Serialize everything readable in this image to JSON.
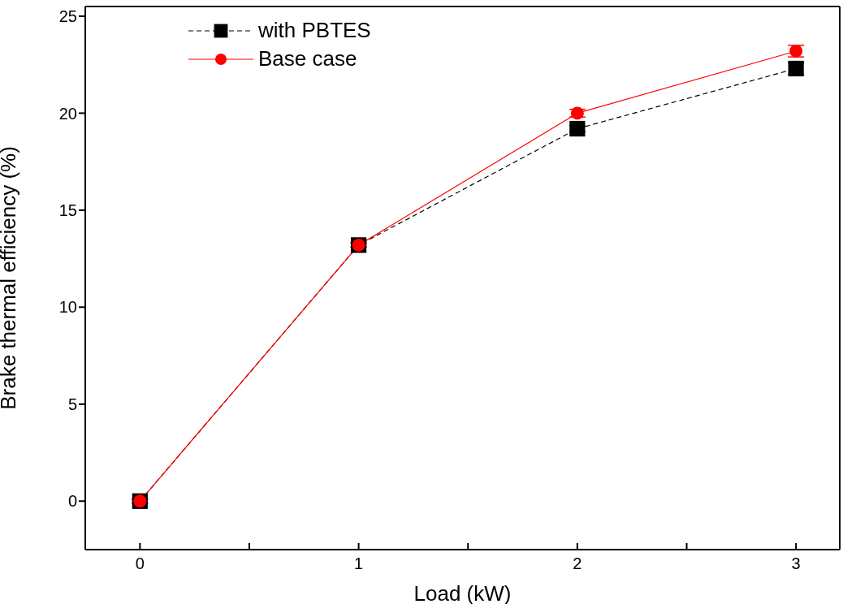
{
  "chart_data": {
    "type": "line",
    "xlabel": "Load (kW)",
    "ylabel": "Brake thermal efficiency (%)",
    "x": [
      0,
      1,
      2,
      3
    ],
    "xlim": [
      -0.25,
      3.2
    ],
    "xticks": [
      0,
      {
        "value": 0.5,
        "label": null
      },
      1,
      {
        "value": 1.5,
        "label": null
      },
      2,
      {
        "value": 2.5,
        "label": null
      },
      3
    ],
    "ylim": [
      -2.5,
      25.5
    ],
    "yticks": [
      0,
      5,
      10,
      15,
      20,
      25
    ],
    "legend": "top left",
    "series": [
      {
        "name": "with PBTES",
        "color": "#000000",
        "values": [
          0,
          13.2,
          19.2,
          22.3
        ],
        "errors": [
          0.1,
          0.1,
          0.15,
          0.3
        ],
        "marker": "square",
        "line_style": "dashed"
      },
      {
        "name": "Base case",
        "color": "#ff0000",
        "values": [
          0,
          13.2,
          20.0,
          23.2
        ],
        "errors": [
          0.1,
          0.1,
          0.2,
          0.3
        ],
        "marker": "circle",
        "line_style": "solid"
      }
    ]
  }
}
